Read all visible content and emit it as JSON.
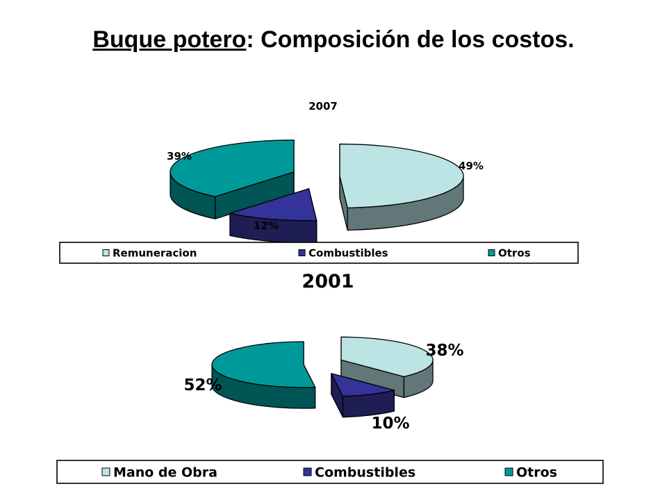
{
  "page": {
    "title_underlined": "Buque potero",
    "title_rest": ": Composición de los costos."
  },
  "colors": {
    "remuneracion_top": "#BCE4E4",
    "remuneracion_side": "#627878",
    "combustibles_top": "#333399",
    "combustibles_side": "#1E1E55",
    "otros_top": "#009999",
    "otros_side": "#005555",
    "outline": "#000000"
  },
  "chart_data": [
    {
      "type": "pie",
      "style": "3d-exploded",
      "title": "2007",
      "categories": [
        "Remuneracion",
        "Combustibles",
        "Otros"
      ],
      "values": [
        49,
        12,
        39
      ],
      "data_labels": [
        "49%",
        "12%",
        "39%"
      ],
      "legend": [
        "Remuneracion",
        "Combustibles",
        "Otros"
      ],
      "legend_position": "bottom"
    },
    {
      "type": "pie",
      "style": "3d-exploded",
      "title": "2001",
      "categories": [
        "Mano de Obra",
        "Combustibles",
        "Otros"
      ],
      "values": [
        38,
        10,
        52
      ],
      "data_labels": [
        "38%",
        "10%",
        "52%"
      ],
      "legend": [
        "Mano de Obra",
        "Combustibles",
        "Otros"
      ],
      "legend_position": "bottom"
    }
  ]
}
